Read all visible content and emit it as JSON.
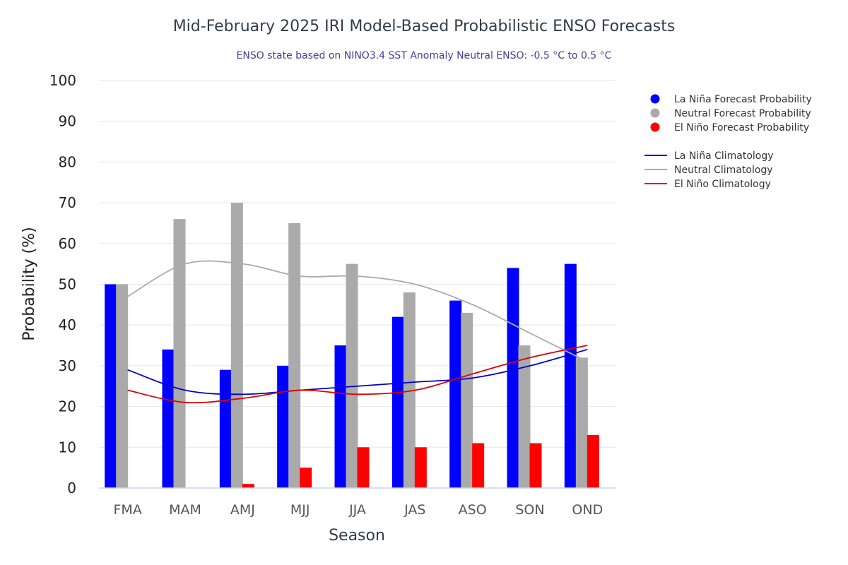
{
  "chart_data": {
    "type": "bar",
    "title": "Mid-February 2025 IRI Model-Based Probabilistic ENSO Forecasts",
    "subtitle": "ENSO state based on NINO3.4 SST Anomaly Neutral ENSO: -0.5 °C to 0.5 °C",
    "xlabel": "Season",
    "ylabel": "Probability (%)",
    "ylim": [
      0,
      100
    ],
    "yticks": [
      0,
      10,
      20,
      30,
      40,
      50,
      60,
      70,
      80,
      90,
      100
    ],
    "categories": [
      "FMA",
      "MAM",
      "AMJ",
      "MJJ",
      "JJA",
      "JAS",
      "ASO",
      "SON",
      "OND"
    ],
    "series": [
      {
        "name": "La Niña Forecast Probability",
        "kind": "bar",
        "color": "#0000ff",
        "values": [
          50,
          34,
          29,
          30,
          35,
          42,
          46,
          54,
          55
        ]
      },
      {
        "name": "Neutral Forecast Probability",
        "kind": "bar",
        "color": "#aaaaaa",
        "values": [
          50,
          66,
          70,
          65,
          55,
          48,
          43,
          35,
          32
        ]
      },
      {
        "name": "El Niño Forecast Probability",
        "kind": "bar",
        "color": "#ff0000",
        "values": [
          0,
          0,
          1,
          5,
          10,
          10,
          11,
          11,
          13
        ]
      },
      {
        "name": "La Niña Climatology",
        "kind": "line",
        "color": "#0000cc",
        "values": [
          29,
          24,
          23,
          24,
          25,
          26,
          27,
          30,
          34
        ]
      },
      {
        "name": "Neutral Climatology",
        "kind": "line",
        "color": "#aaaaaa",
        "values": [
          47,
          55,
          55,
          52,
          52,
          50,
          45,
          38,
          31
        ]
      },
      {
        "name": "El Niño Climatology",
        "kind": "line",
        "color": "#dd0000",
        "values": [
          24,
          21,
          22,
          24,
          23,
          24,
          28,
          32,
          35
        ]
      }
    ],
    "legend_position": "top-right",
    "grid": true
  }
}
